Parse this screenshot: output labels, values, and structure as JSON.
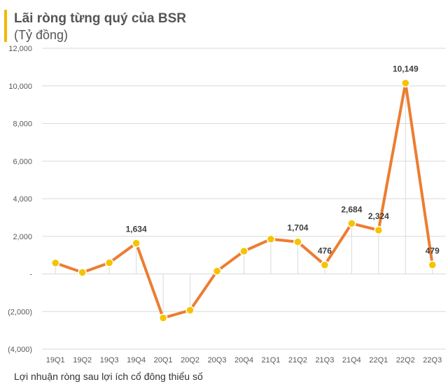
{
  "header": {
    "title": "Lãi ròng từng quý của BSR",
    "unit": "(Tỷ đồng)"
  },
  "footnote": "Lợi nhuận ròng sau lợi ích cổ đông thiểu số",
  "colors": {
    "accent": "#f5b800",
    "line": "#ed7d31",
    "marker": "#f5c400",
    "grid": "#d9d9d9"
  },
  "chart_data": {
    "type": "line",
    "title": "Lãi ròng từng quý của BSR",
    "ylabel": "(Tỷ đồng)",
    "xlabel": "",
    "ylim": [
      -4000,
      12000
    ],
    "yticks": [
      12000,
      10000,
      8000,
      6000,
      4000,
      2000,
      0,
      -2000,
      -4000
    ],
    "ytick_labels": [
      "12,000",
      "10,000",
      "8,000",
      "6,000",
      "4,000",
      "2,000",
      "-",
      "(2,000)",
      "(4,000)"
    ],
    "grid": true,
    "categories": [
      "19Q1",
      "19Q2",
      "19Q3",
      "19Q4",
      "20Q1",
      "20Q2",
      "20Q3",
      "20Q4",
      "21Q1",
      "21Q2",
      "21Q3",
      "21Q4",
      "22Q1",
      "22Q2",
      "22Q3"
    ],
    "series": [
      {
        "name": "Lợi nhuận ròng sau lợi ích cổ đông thiểu số",
        "values": [
          580,
          80,
          590,
          1634,
          -2340,
          -1930,
          150,
          1210,
          1850,
          1704,
          476,
          2684,
          2324,
          10149,
          479
        ]
      }
    ],
    "data_labels": [
      {
        "index": 3,
        "text": "1,634"
      },
      {
        "index": 9,
        "text": "1,704"
      },
      {
        "index": 10,
        "text": "476"
      },
      {
        "index": 11,
        "text": "2,684"
      },
      {
        "index": 12,
        "text": "2,324"
      },
      {
        "index": 13,
        "text": "10,149"
      },
      {
        "index": 14,
        "text": "479"
      }
    ]
  }
}
